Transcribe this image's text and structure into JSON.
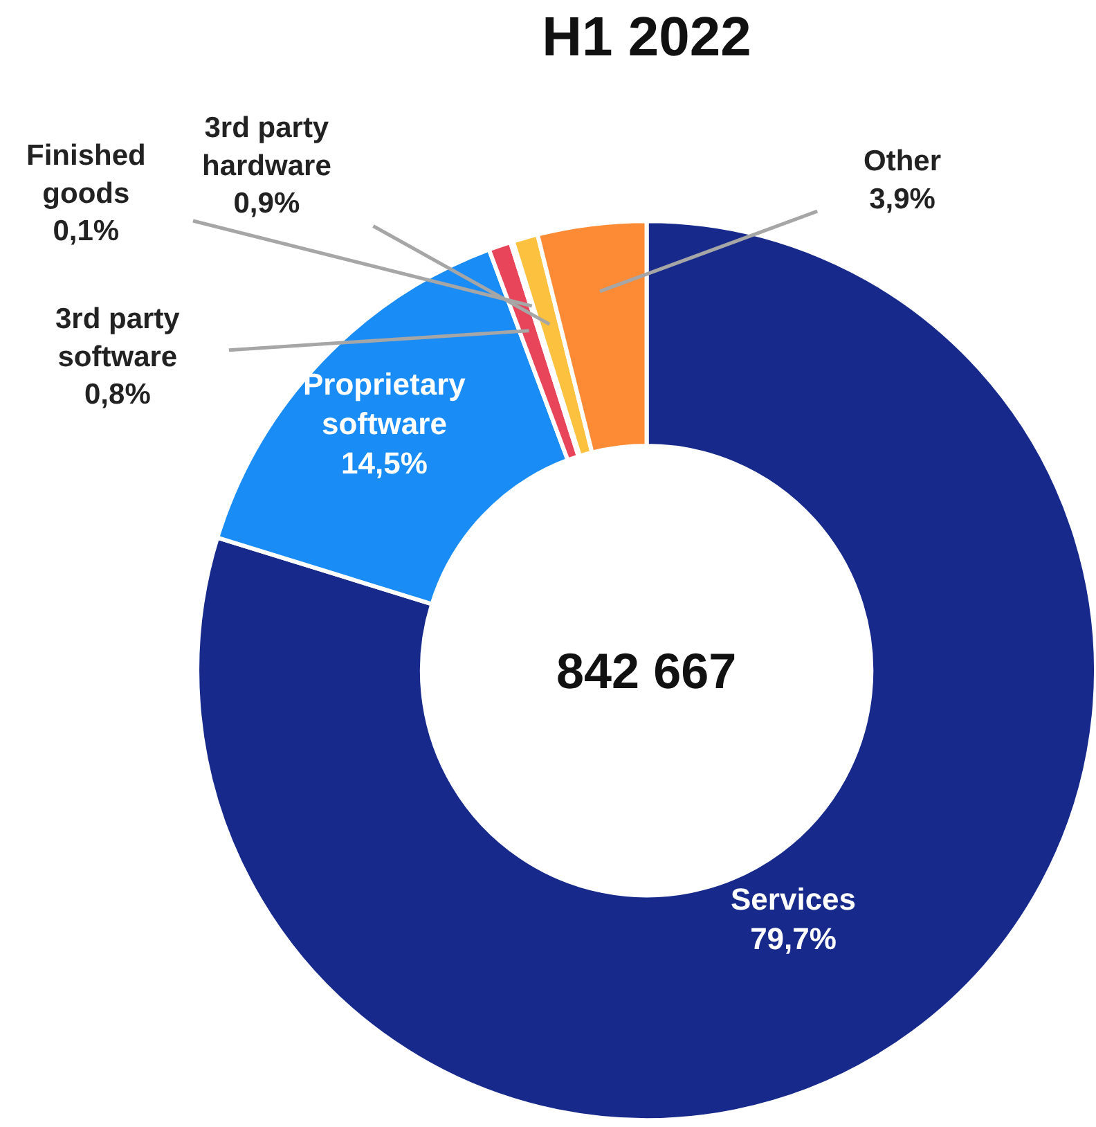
{
  "chart_data": {
    "type": "donut",
    "title": "H1 2022",
    "categories": [
      "Services",
      "Proprietary software",
      "3rd party software",
      "Finished goods",
      "3rd party hardware",
      "Other"
    ],
    "values": [
      79.7,
      14.5,
      0.8,
      0.1,
      0.9,
      3.9
    ],
    "colors": [
      "#172a8c",
      "#1a8cf5",
      "#e8445a",
      "#d8f0c0",
      "#fcc13e",
      "#fd8a35"
    ],
    "value_labels": [
      "79,7%",
      "14,5%",
      "0,8%",
      "0,1%",
      "0,9%",
      "3,9%"
    ],
    "annotations": [
      "842 667"
    ]
  }
}
